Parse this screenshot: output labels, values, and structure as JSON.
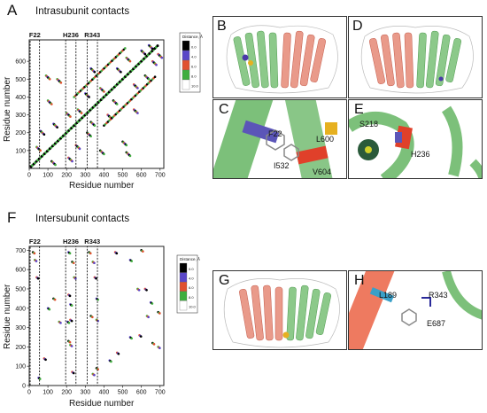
{
  "panels": {
    "A": {
      "letter": "A",
      "title": "Intrasubunit contacts"
    },
    "F": {
      "letter": "F",
      "title": "Intersubunit contacts"
    },
    "B": {
      "letter": "B"
    },
    "C": {
      "letter": "C",
      "residues": [
        "F22",
        "L600",
        "I532",
        "V604"
      ]
    },
    "D": {
      "letter": "D"
    },
    "E": {
      "letter": "E",
      "residues": [
        "S218",
        "H236"
      ]
    },
    "G": {
      "letter": "G"
    },
    "H": {
      "letter": "H",
      "residues": [
        "L189",
        "R343",
        "E687"
      ]
    }
  },
  "chart_data": [
    {
      "type": "heatmap",
      "title": "Intrasubunit contacts",
      "xlabel": "Residue number",
      "ylabel": "Residue number",
      "xticks": [
        0,
        100,
        200,
        300,
        400,
        500,
        600,
        700
      ],
      "yticks": [
        100,
        200,
        300,
        400,
        500,
        600
      ],
      "xlim": [
        0,
        720
      ],
      "ylim": [
        0,
        720
      ],
      "markers": [
        "F22",
        "H236",
        "R343"
      ],
      "legend_title": "Distance, Å",
      "legend_levels": [
        "0.0",
        "4.0",
        "6.0",
        "8.0",
        "10.0"
      ],
      "legend_colors": [
        "#000000",
        "#5a47c8",
        "#e05030",
        "#3fae3f",
        "#ffffff"
      ]
    },
    {
      "type": "heatmap",
      "title": "Intersubunit contacts",
      "xlabel": "Residue number",
      "ylabel": "Residue number",
      "xticks": [
        0,
        100,
        200,
        300,
        400,
        500,
        600,
        700
      ],
      "yticks": [
        0,
        100,
        200,
        300,
        400,
        500,
        600,
        700
      ],
      "xlim": [
        0,
        720
      ],
      "ylim": [
        0,
        720
      ],
      "markers": [
        "F22",
        "H236",
        "R343"
      ],
      "legend_title": "Distance, Å",
      "legend_levels": [
        "0.0",
        "4.0",
        "6.0",
        "8.0",
        "10.0"
      ],
      "legend_colors": [
        "#000000",
        "#5a47c8",
        "#e05030",
        "#3fae3f",
        "#ffffff"
      ]
    }
  ]
}
